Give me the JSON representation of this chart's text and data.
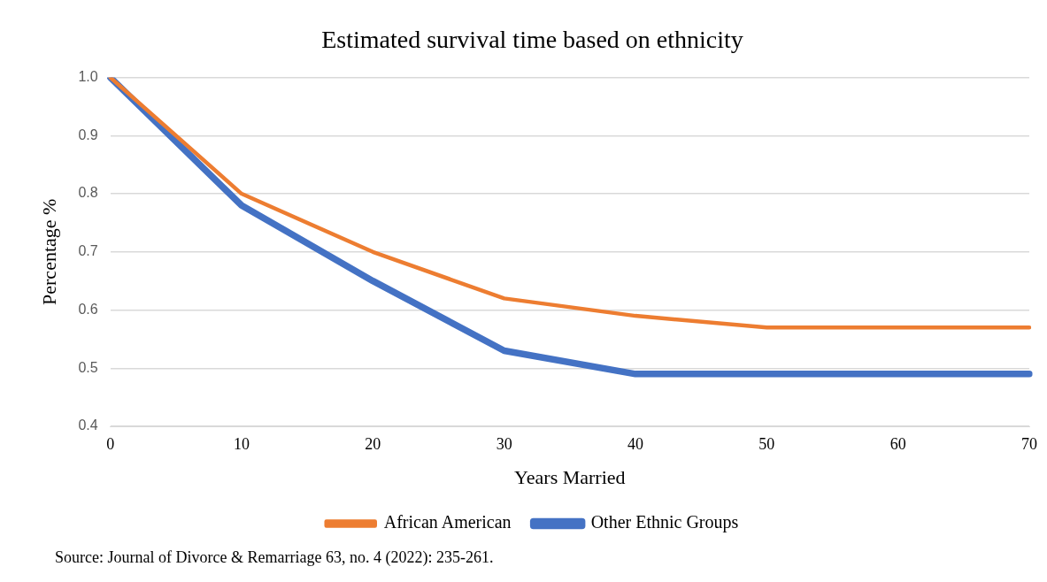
{
  "chart_data": {
    "type": "line",
    "title": "Estimated survival time based on ethnicity",
    "xlabel": "Years Married",
    "ylabel": "Percentage %",
    "categories": [
      "0",
      "10",
      "20",
      "30",
      "40",
      "50",
      "60",
      "70"
    ],
    "series": [
      {
        "name": "Other Ethnic Groups",
        "color": "#4472c4",
        "values": [
          1.0,
          0.78,
          0.65,
          0.53,
          0.49,
          0.49,
          0.49,
          0.49
        ]
      },
      {
        "name": "African American",
        "color": "#ed7d31",
        "values": [
          1.0,
          0.8,
          0.7,
          0.62,
          0.59,
          0.57,
          0.57,
          0.57
        ]
      }
    ],
    "ylim": [
      0.4,
      1.0
    ],
    "yticks": [
      {
        "value": 0.4,
        "label": "0.4"
      },
      {
        "value": 0.5,
        "label": "0.5"
      },
      {
        "value": 0.6,
        "label": "0.6"
      },
      {
        "value": 0.7,
        "label": "0.7"
      },
      {
        "value": 0.8,
        "label": "0.8"
      },
      {
        "value": 0.9,
        "label": "0.9"
      },
      {
        "value": 1.0,
        "label": "1.0"
      }
    ],
    "grid": "y",
    "legend": "bottom",
    "marker": "none",
    "line_style": "solid",
    "annotations": [
      "Source: Journal of Divorce & Remarriage 63, no. 4 (2022): 235-261."
    ]
  }
}
